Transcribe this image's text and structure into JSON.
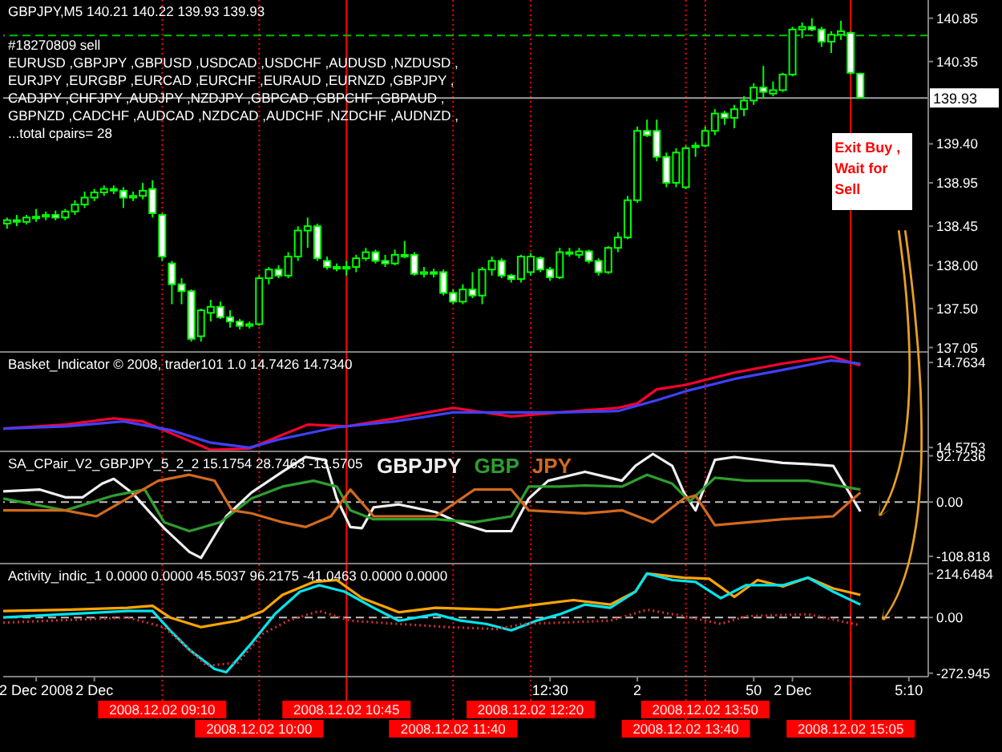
{
  "chart_data": [
    {
      "type": "candlestick",
      "title": "GBPJPY,M5  140.21 140.22 139.93 139.93",
      "color": "#00ff00",
      "annotations": [
        "#18270809 sell",
        "EURUSD ,GBPJPY ,GBPUSD ,USDCAD ,USDCHF ,AUDUSD ,NZDUSD ,",
        "EURJPY ,EURGBP ,EURCAD ,EURCHF ,EURAUD ,EURNZD ,GBPJPY ,",
        "CADJPY ,CHFJPY ,AUDJPY ,NZDJPY ,GBPCAD ,GBPCHF ,GBPAUD ,",
        "GBPNZD ,CADCHF ,AUDCAD ,NZDCAD ,AUDCHF ,NZDCHF ,AUDNZD ,",
        "...total cpairs= 28",
        {
          "text": "Exit Buy , Wait for Sell",
          "x": "2008-12-02T15:05",
          "y": 139.05
        }
      ],
      "x": [
        "2008-12-02T07:50",
        "2008-12-02T07:55",
        "2008-12-02T08:00",
        "2008-12-02T08:05",
        "2008-12-02T08:10",
        "2008-12-02T08:15",
        "2008-12-02T08:20",
        "2008-12-02T08:25",
        "2008-12-02T08:30",
        "2008-12-02T08:35",
        "2008-12-02T08:40",
        "2008-12-02T08:45",
        "2008-12-02T08:50",
        "2008-12-02T08:55",
        "2008-12-02T09:00",
        "2008-12-02T09:05",
        "2008-12-02T09:10",
        "2008-12-02T09:15",
        "2008-12-02T09:20",
        "2008-12-02T09:25",
        "2008-12-02T09:30",
        "2008-12-02T09:35",
        "2008-12-02T09:40",
        "2008-12-02T09:45",
        "2008-12-02T09:50",
        "2008-12-02T09:55",
        "2008-12-02T10:00",
        "2008-12-02T10:05",
        "2008-12-02T10:10",
        "2008-12-02T10:15",
        "2008-12-02T10:20",
        "2008-12-02T10:25",
        "2008-12-02T10:30",
        "2008-12-02T10:35",
        "2008-12-02T10:40",
        "2008-12-02T10:45",
        "2008-12-02T10:50",
        "2008-12-02T10:55",
        "2008-12-02T11:00",
        "2008-12-02T11:05",
        "2008-12-02T11:10",
        "2008-12-02T11:15",
        "2008-12-02T11:20",
        "2008-12-02T11:25",
        "2008-12-02T11:30",
        "2008-12-02T11:35",
        "2008-12-02T11:40",
        "2008-12-02T11:45",
        "2008-12-02T11:50",
        "2008-12-02T11:55",
        "2008-12-02T12:00",
        "2008-12-02T12:05",
        "2008-12-02T12:10",
        "2008-12-02T12:15",
        "2008-12-02T12:20",
        "2008-12-02T12:25",
        "2008-12-02T12:30",
        "2008-12-02T12:35",
        "2008-12-02T12:40",
        "2008-12-02T12:45",
        "2008-12-02T12:50",
        "2008-12-02T12:55",
        "2008-12-02T13:00",
        "2008-12-02T13:05",
        "2008-12-02T13:10",
        "2008-12-02T13:15",
        "2008-12-02T13:20",
        "2008-12-02T13:25",
        "2008-12-02T13:30",
        "2008-12-02T13:35",
        "2008-12-02T13:40",
        "2008-12-02T13:45",
        "2008-12-02T13:50",
        "2008-12-02T13:55",
        "2008-12-02T14:00",
        "2008-12-02T14:05",
        "2008-12-02T14:10",
        "2008-12-02T14:15",
        "2008-12-02T14:20",
        "2008-12-02T14:25",
        "2008-12-02T14:30",
        "2008-12-02T14:35",
        "2008-12-02T14:40",
        "2008-12-02T14:45",
        "2008-12-02T14:50",
        "2008-12-02T14:55",
        "2008-12-02T15:00",
        "2008-12-02T15:05",
        "2008-12-02T15:10"
      ],
      "ohlc": [
        [
          138.48,
          138.55,
          138.42,
          138.52
        ],
        [
          138.52,
          138.58,
          138.45,
          138.5
        ],
        [
          138.5,
          138.58,
          138.47,
          138.55
        ],
        [
          138.55,
          138.65,
          138.5,
          138.56
        ],
        [
          138.56,
          138.62,
          138.52,
          138.58
        ],
        [
          138.58,
          138.63,
          138.52,
          138.55
        ],
        [
          138.55,
          138.65,
          138.52,
          138.62
        ],
        [
          138.62,
          138.75,
          138.58,
          138.7
        ],
        [
          138.7,
          138.85,
          138.66,
          138.78
        ],
        [
          138.78,
          138.88,
          138.74,
          138.84
        ],
        [
          138.84,
          138.92,
          138.8,
          138.88
        ],
        [
          138.88,
          138.92,
          138.82,
          138.86
        ],
        [
          138.86,
          138.9,
          138.66,
          138.78
        ],
        [
          138.78,
          138.85,
          138.74,
          138.8
        ],
        [
          138.8,
          138.95,
          138.76,
          138.86
        ],
        [
          138.88,
          138.98,
          138.55,
          138.6
        ],
        [
          138.58,
          138.6,
          138.05,
          138.1
        ],
        [
          138.02,
          138.05,
          137.55,
          137.78
        ],
        [
          137.78,
          137.85,
          137.55,
          137.7
        ],
        [
          137.7,
          137.72,
          137.12,
          137.15
        ],
        [
          137.18,
          137.5,
          137.12,
          137.48
        ],
        [
          137.45,
          137.6,
          137.35,
          137.52
        ],
        [
          137.52,
          137.58,
          137.38,
          137.4
        ],
        [
          137.4,
          137.48,
          137.28,
          137.35
        ],
        [
          137.35,
          137.38,
          137.26,
          137.3
        ],
        [
          137.3,
          137.35,
          137.27,
          137.32
        ],
        [
          137.32,
          137.88,
          137.3,
          137.85
        ],
        [
          137.85,
          137.98,
          137.78,
          137.95
        ],
        [
          137.95,
          138.0,
          137.85,
          137.88
        ],
        [
          137.88,
          138.15,
          137.85,
          138.1
        ],
        [
          138.1,
          138.45,
          138.05,
          138.4
        ],
        [
          138.4,
          138.55,
          138.2,
          138.45
        ],
        [
          138.45,
          138.48,
          138.05,
          138.08
        ],
        [
          138.05,
          138.1,
          137.95,
          137.98
        ],
        [
          137.98,
          138.02,
          137.93,
          137.96
        ],
        [
          137.96,
          138.05,
          137.88,
          137.98
        ],
        [
          137.98,
          138.12,
          137.92,
          138.08
        ],
        [
          138.08,
          138.2,
          138.05,
          138.15
        ],
        [
          138.15,
          138.18,
          138.02,
          138.05
        ],
        [
          138.05,
          138.12,
          137.98,
          138.02
        ],
        [
          138.02,
          138.18,
          138.0,
          138.12
        ],
        [
          138.12,
          138.28,
          138.08,
          138.1
        ],
        [
          138.12,
          138.15,
          137.88,
          137.9
        ],
        [
          137.9,
          137.98,
          137.86,
          137.92
        ],
        [
          137.92,
          137.96,
          137.86,
          137.9
        ],
        [
          137.92,
          137.95,
          137.65,
          137.68
        ],
        [
          137.68,
          137.72,
          137.55,
          137.58
        ],
        [
          137.58,
          137.78,
          137.55,
          137.72
        ],
        [
          137.72,
          137.92,
          137.62,
          137.65
        ],
        [
          137.65,
          137.98,
          137.55,
          137.95
        ],
        [
          137.95,
          138.1,
          137.88,
          138.05
        ],
        [
          138.05,
          138.08,
          137.85,
          137.88
        ],
        [
          137.88,
          137.9,
          137.8,
          137.84
        ],
        [
          137.84,
          138.12,
          137.8,
          138.1
        ],
        [
          137.92,
          138.14,
          137.88,
          138.1
        ],
        [
          138.08,
          138.1,
          137.92,
          137.95
        ],
        [
          137.95,
          137.98,
          137.82,
          137.86
        ],
        [
          137.86,
          138.2,
          137.84,
          138.15
        ],
        [
          138.15,
          138.2,
          138.1,
          138.14
        ],
        [
          138.12,
          138.2,
          138.08,
          138.16
        ],
        [
          138.16,
          138.18,
          138.02,
          138.05
        ],
        [
          138.05,
          138.08,
          137.88,
          137.92
        ],
        [
          137.92,
          138.22,
          137.9,
          138.2
        ],
        [
          138.2,
          138.38,
          138.15,
          138.32
        ],
        [
          138.32,
          138.8,
          138.3,
          138.75
        ],
        [
          138.75,
          139.6,
          138.72,
          139.55
        ],
        [
          139.55,
          139.68,
          139.48,
          139.5
        ],
        [
          139.55,
          139.68,
          139.2,
          139.25
        ],
        [
          139.25,
          139.3,
          138.9,
          138.95
        ],
        [
          138.95,
          139.35,
          138.9,
          139.3
        ],
        [
          138.9,
          139.38,
          138.88,
          139.35
        ],
        [
          139.38,
          139.42,
          139.25,
          139.38
        ],
        [
          139.38,
          139.6,
          139.36,
          139.55
        ],
        [
          139.55,
          139.8,
          139.5,
          139.75
        ],
        [
          139.75,
          139.78,
          139.62,
          139.7
        ],
        [
          139.7,
          139.85,
          139.58,
          139.8
        ],
        [
          139.8,
          139.95,
          139.72,
          139.9
        ],
        [
          139.9,
          140.1,
          139.85,
          140.05
        ],
        [
          140.05,
          140.3,
          139.92,
          140.0
        ],
        [
          139.98,
          140.12,
          139.95,
          140.02
        ],
        [
          140.02,
          140.22,
          140.0,
          140.2
        ],
        [
          140.2,
          140.75,
          140.18,
          140.72
        ],
        [
          140.72,
          140.8,
          140.62,
          140.75
        ],
        [
          140.75,
          140.85,
          140.7,
          140.72
        ],
        [
          140.72,
          140.75,
          140.52,
          140.58
        ],
        [
          140.58,
          140.7,
          140.45,
          140.66
        ],
        [
          140.66,
          140.82,
          140.6,
          140.7
        ],
        [
          140.68,
          140.7,
          140.2,
          140.22
        ],
        [
          140.21,
          140.22,
          139.93,
          139.93
        ]
      ],
      "xlim": [
        "2008-12-02T07:48",
        "2008-12-02T15:45"
      ],
      "ylim": [
        136.99,
        141.06
      ],
      "yticks": [
        {
          "value": 137.05,
          "label": "137.05"
        },
        {
          "value": 137.5,
          "label": "137.50"
        },
        {
          "value": 138,
          "label": "138.00"
        },
        {
          "value": 138.45,
          "label": "138.45"
        },
        {
          "value": 138.95,
          "label": "138.95"
        },
        {
          "value": 139.4,
          "label": "139.40"
        },
        {
          "value": 140.35,
          "label": "140.35"
        },
        {
          "value": 140.85,
          "label": "140.85"
        }
      ],
      "tick_labels": "y",
      "ref_lines": [
        {
          "axis": "y",
          "value": 140.65,
          "color": "#00c000",
          "line_style": "dashed"
        },
        {
          "axis": "y",
          "value": 139.93,
          "label": "139.93",
          "color": "#a0a0a0",
          "line_style": "solid"
        },
        {
          "axis": "x",
          "value": "2008-12-02T09:10",
          "color": "#ff0000",
          "line_style": "dotted"
        },
        {
          "axis": "x",
          "value": "2008-12-02T10:00",
          "color": "#ff0000",
          "line_style": "dotted"
        },
        {
          "axis": "x",
          "value": "2008-12-02T10:45",
          "color": "#ff0000",
          "line_style": "solid"
        },
        {
          "axis": "x",
          "value": "2008-12-02T11:40",
          "color": "#ff0000",
          "line_style": "dotted"
        },
        {
          "axis": "x",
          "value": "2008-12-02T12:20",
          "color": "#ff0000",
          "line_style": "dotted"
        },
        {
          "axis": "x",
          "value": "2008-12-02T13:40",
          "color": "#ff0000",
          "line_style": "dotted"
        },
        {
          "axis": "x",
          "value": "2008-12-02T13:50",
          "color": "#ff0000",
          "line_style": "dotted"
        },
        {
          "axis": "x",
          "value": "2008-12-02T15:05",
          "color": "#ff0000",
          "line_style": "solid"
        }
      ]
    },
    {
      "type": "line",
      "title": "Basket_Indicator © 2008, trader101 1.0 14.7426 14.7340",
      "series": [
        {
          "color": "#ff0030",
          "x": [
            "2008-12-02T07:48",
            "2008-12-02T08:20",
            "2008-12-02T08:45",
            "2008-12-02T09:00",
            "2008-12-02T09:15",
            "2008-12-02T09:35",
            "2008-12-02T09:55",
            "2008-12-02T10:10",
            "2008-12-02T10:25",
            "2008-12-02T10:45",
            "2008-12-02T11:10",
            "2008-12-02T11:40",
            "2008-12-02T12:10",
            "2008-12-02T12:35",
            "2008-12-02T13:05",
            "2008-12-02T13:15",
            "2008-12-02T13:25",
            "2008-12-02T13:40",
            "2008-12-02T14:05",
            "2008-12-02T14:30",
            "2008-12-02T14:55",
            "2008-12-02T15:10"
          ],
          "values": [
            14.617,
            14.626,
            14.64,
            14.633,
            14.606,
            14.57,
            14.573,
            14.6,
            14.626,
            14.622,
            14.64,
            14.663,
            14.644,
            14.653,
            14.663,
            14.673,
            14.704,
            14.714,
            14.741,
            14.761,
            14.777,
            14.757
          ]
        },
        {
          "color": "#4040ff",
          "x": [
            "2008-12-02T07:48",
            "2008-12-02T08:20",
            "2008-12-02T08:50",
            "2008-12-02T09:15",
            "2008-12-02T09:35",
            "2008-12-02T09:55",
            "2008-12-02T10:10",
            "2008-12-02T10:40",
            "2008-12-02T11:10",
            "2008-12-02T11:40",
            "2008-12-02T12:10",
            "2008-12-02T12:35",
            "2008-12-02T13:05",
            "2008-12-02T13:25",
            "2008-12-02T13:40",
            "2008-12-02T14:05",
            "2008-12-02T14:30",
            "2008-12-02T14:55",
            "2008-12-02T15:10"
          ],
          "values": [
            14.617,
            14.622,
            14.633,
            14.613,
            14.586,
            14.575,
            14.593,
            14.62,
            14.633,
            14.653,
            14.653,
            14.653,
            14.656,
            14.68,
            14.7,
            14.727,
            14.747,
            14.768,
            14.761
          ]
        }
      ],
      "xlim": [
        "2008-12-02T07:48",
        "2008-12-02T15:45"
      ],
      "ylim": [
        14.565,
        14.785
      ],
      "yticks": [
        14.5753,
        14.7634
      ],
      "tick_labels": "y",
      "ref_lines": [
        {
          "axis": "x",
          "value": "2008-12-02T09:10",
          "color": "#ff0000",
          "line_style": "dotted"
        },
        {
          "axis": "x",
          "value": "2008-12-02T10:00",
          "color": "#ff0000",
          "line_style": "dotted"
        },
        {
          "axis": "x",
          "value": "2008-12-02T10:45",
          "color": "#ff0000",
          "line_style": "solid"
        },
        {
          "axis": "x",
          "value": "2008-12-02T11:40",
          "color": "#ff0000",
          "line_style": "dotted"
        },
        {
          "axis": "x",
          "value": "2008-12-02T12:20",
          "color": "#ff0000",
          "line_style": "dotted"
        },
        {
          "axis": "x",
          "value": "2008-12-02T13:40",
          "color": "#ff0000",
          "line_style": "dotted"
        },
        {
          "axis": "x",
          "value": "2008-12-02T13:50",
          "color": "#ff0000",
          "line_style": "dotted"
        },
        {
          "axis": "x",
          "value": "2008-12-02T15:05",
          "color": "#ff0000",
          "line_style": "solid"
        }
      ]
    },
    {
      "type": "line",
      "title": "SA_CPair_V2_GBPJPY_5_2_2 15.1754 28.7463 -13.5705",
      "series": [
        {
          "name": "GBPJPY",
          "color": "#f0f0f0",
          "x": [
            "2008-12-02T07:48",
            "2008-12-02T08:07",
            "2008-12-02T08:20",
            "2008-12-02T08:29",
            "2008-12-02T08:39",
            "2008-12-02T08:45",
            "2008-12-02T08:55",
            "2008-12-02T09:11",
            "2008-12-02T09:24",
            "2008-12-02T09:30",
            "2008-12-02T09:43",
            "2008-12-02T09:56",
            "2008-12-02T10:12",
            "2008-12-02T10:24",
            "2008-12-02T10:34",
            "2008-12-02T10:40",
            "2008-12-02T10:47",
            "2008-12-02T10:53",
            "2008-12-02T10:59",
            "2008-12-02T11:12",
            "2008-12-02T11:31",
            "2008-12-02T11:44",
            "2008-12-02T11:57",
            "2008-12-02T12:10",
            "2008-12-02T12:19",
            "2008-12-02T12:29",
            "2008-12-02T12:48",
            "2008-12-02T13:07",
            "2008-12-02T13:14",
            "2008-12-02T13:23",
            "2008-12-02T13:33",
            "2008-12-02T13:39",
            "2008-12-02T13:45",
            "2008-12-02T13:55",
            "2008-12-02T14:05",
            "2008-12-02T14:30",
            "2008-12-02T14:43",
            "2008-12-02T14:56",
            "2008-12-02T15:10"
          ],
          "values": [
            21.4,
            25.0,
            9.5,
            9.5,
            36.9,
            46.4,
            16.7,
            -52.4,
            -100.0,
            -111.9,
            -28.6,
            19.0,
            60.7,
            90.4,
            84.5,
            7.1,
            -50.0,
            -52.4,
            -10.7,
            -4.8,
            -20.2,
            -42.8,
            -58.3,
            -58.3,
            7.1,
            42.8,
            60.7,
            42.8,
            72.6,
            96.4,
            72.6,
            19.0,
            -16.7,
            84.5,
            90.4,
            78.5,
            76.2,
            72.6,
            -19.0
          ]
        },
        {
          "name": "GBP",
          "color": "#2e9e2e",
          "x": [
            "2008-12-02T07:48",
            "2008-12-02T08:20",
            "2008-12-02T08:45",
            "2008-12-02T09:01",
            "2008-12-02T09:11",
            "2008-12-02T09:24",
            "2008-12-02T09:40",
            "2008-12-02T09:56",
            "2008-12-02T10:12",
            "2008-12-02T10:28",
            "2008-12-02T10:40",
            "2008-12-02T10:47",
            "2008-12-02T10:59",
            "2008-12-02T11:31",
            "2008-12-02T11:51",
            "2008-12-02T12:10",
            "2008-12-02T12:19",
            "2008-12-02T12:35",
            "2008-12-02T12:48",
            "2008-12-02T13:07",
            "2008-12-02T13:20",
            "2008-12-02T13:33",
            "2008-12-02T13:42",
            "2008-12-02T13:55",
            "2008-12-02T14:11",
            "2008-12-02T14:43",
            "2008-12-02T15:10"
          ],
          "values": [
            7.1,
            -16.7,
            13.1,
            25.0,
            -40.5,
            -58.3,
            -40.5,
            7.1,
            31.0,
            42.8,
            31.0,
            -16.7,
            -34.5,
            -34.5,
            -40.5,
            -28.6,
            31.0,
            31.0,
            33.3,
            31.0,
            54.7,
            36.9,
            1.2,
            48.8,
            42.8,
            42.8,
            25.0
          ]
        },
        {
          "name": "JPY",
          "color": "#d2691e",
          "x": [
            "2008-12-02T07:48",
            "2008-12-02T08:20",
            "2008-12-02T08:36",
            "2008-12-02T08:52",
            "2008-12-02T09:08",
            "2008-12-02T09:24",
            "2008-12-02T09:37",
            "2008-12-02T09:46",
            "2008-12-02T09:56",
            "2008-12-02T10:12",
            "2008-12-02T10:24",
            "2008-12-02T10:37",
            "2008-12-02T10:47",
            "2008-12-02T10:59",
            "2008-12-02T11:31",
            "2008-12-02T11:51",
            "2008-12-02T12:10",
            "2008-12-02T12:19",
            "2008-12-02T12:48",
            "2008-12-02T13:07",
            "2008-12-02T13:23",
            "2008-12-02T13:39",
            "2008-12-02T13:45",
            "2008-12-02T13:55",
            "2008-12-02T14:30",
            "2008-12-02T14:56",
            "2008-12-02T15:10"
          ],
          "values": [
            -16.7,
            -16.7,
            -28.6,
            7.1,
            42.8,
            54.7,
            42.8,
            -16.7,
            -22.6,
            -40.5,
            -50.0,
            -28.6,
            25.0,
            -28.6,
            -28.6,
            25.0,
            25.0,
            -16.7,
            -22.6,
            -16.7,
            -40.5,
            7.1,
            13.1,
            -46.4,
            -34.5,
            -28.6,
            19.0
          ]
        }
      ],
      "xlim": [
        "2008-12-02T07:48",
        "2008-12-02T15:45"
      ],
      "ylim": [
        -125,
        100
      ],
      "yticks": [
        -108.818,
        {
          "value": 0,
          "label": "0.00"
        },
        92.7236
      ],
      "tick_labels": "y",
      "ref_lines": [
        {
          "axis": "y",
          "value": 0,
          "color": "#c0c0c0",
          "line_style": "dashed"
        },
        {
          "axis": "x",
          "value": "2008-12-02T09:10",
          "color": "#ff0000",
          "line_style": "dotted"
        },
        {
          "axis": "x",
          "value": "2008-12-02T10:00",
          "color": "#ff0000",
          "line_style": "dotted"
        },
        {
          "axis": "x",
          "value": "2008-12-02T10:45",
          "color": "#ff0000",
          "line_style": "solid"
        },
        {
          "axis": "x",
          "value": "2008-12-02T11:40",
          "color": "#ff0000",
          "line_style": "dotted"
        },
        {
          "axis": "x",
          "value": "2008-12-02T12:20",
          "color": "#ff0000",
          "line_style": "dotted"
        },
        {
          "axis": "x",
          "value": "2008-12-02T13:40",
          "color": "#ff0000",
          "line_style": "dotted"
        },
        {
          "axis": "x",
          "value": "2008-12-02T13:50",
          "color": "#ff0000",
          "line_style": "dotted"
        },
        {
          "axis": "x",
          "value": "2008-12-02T15:05",
          "color": "#ff0000",
          "line_style": "solid"
        }
      ]
    },
    {
      "type": "line",
      "title": "Activity_indic_1 0.0000 0.0000 45.5037 96.2175 -41.0463 0.0000 0.0000",
      "series": [
        {
          "color": "#ffa500",
          "x": [
            "2008-12-02T07:48",
            "2008-12-02T08:20",
            "2008-12-02T08:52",
            "2008-12-02T09:05",
            "2008-12-02T09:14",
            "2008-12-02T09:30",
            "2008-12-02T09:49",
            "2008-12-02T10:02",
            "2008-12-02T10:12",
            "2008-12-02T10:28",
            "2008-12-02T10:40",
            "2008-12-02T10:53",
            "2008-12-02T11:06",
            "2008-12-02T11:12",
            "2008-12-02T11:31",
            "2008-12-02T12:03",
            "2008-12-02T12:23",
            "2008-12-02T12:42",
            "2008-12-02T13:01",
            "2008-12-02T13:14",
            "2008-12-02T13:20",
            "2008-12-02T13:39",
            "2008-12-02T13:52",
            "2008-12-02T14:05",
            "2008-12-02T14:17",
            "2008-12-02T14:30",
            "2008-12-02T14:43",
            "2008-12-02T14:56",
            "2008-12-02T15:10"
          ],
          "values": [
            31.6,
            37.9,
            47.4,
            56.9,
            0,
            -47.4,
            -15.8,
            31.6,
            110.6,
            173.8,
            183.3,
            94.8,
            47.4,
            25.3,
            47.4,
            37.9,
            63.2,
            85.3,
            63.2,
            126.4,
            215.0,
            195.0,
            189.6,
            101.1,
            183.3,
            151.7,
            195.0,
            142.2,
            110.6
          ]
        },
        {
          "color": "#00e5ee",
          "x": [
            "2008-12-02T07:48",
            "2008-12-02T08:20",
            "2008-12-02T08:52",
            "2008-12-02T09:05",
            "2008-12-02T09:14",
            "2008-12-02T09:24",
            "2008-12-02T09:37",
            "2008-12-02T09:43",
            "2008-12-02T09:56",
            "2008-12-02T10:08",
            "2008-12-02T10:21",
            "2008-12-02T10:31",
            "2008-12-02T10:44",
            "2008-12-02T10:59",
            "2008-12-02T11:12",
            "2008-12-02T11:31",
            "2008-12-02T11:44",
            "2008-12-02T11:57",
            "2008-12-02T12:10",
            "2008-12-02T12:23",
            "2008-12-02T12:35",
            "2008-12-02T12:48",
            "2008-12-02T13:01",
            "2008-12-02T13:14",
            "2008-12-02T13:20",
            "2008-12-02T13:33",
            "2008-12-02T13:45",
            "2008-12-02T13:58",
            "2008-12-02T14:11",
            "2008-12-02T14:30",
            "2008-12-02T14:43",
            "2008-12-02T14:56",
            "2008-12-02T15:10"
          ],
          "values": [
            0,
            15.8,
            31.6,
            31.6,
            -63.2,
            -158.0,
            -252.8,
            -268.6,
            -126.4,
            15.8,
            126.4,
            158.0,
            126.4,
            47.4,
            -15.8,
            15.8,
            -15.8,
            -31.6,
            -63.2,
            -15.8,
            15.8,
            63.2,
            47.4,
            126.4,
            215.0,
            183.3,
            173.8,
            94.8,
            158.0,
            158.0,
            195.0,
            126.4,
            63.2
          ]
        },
        {
          "color": "#d03030",
          "line_style": "dotted",
          "x": [
            "2008-12-02T07:48",
            "2008-12-02T08:52",
            "2008-12-02T09:11",
            "2008-12-02T09:33",
            "2008-12-02T09:49",
            "2008-12-02T10:02",
            "2008-12-02T10:15",
            "2008-12-02T10:31",
            "2008-12-02T10:47",
            "2008-12-02T11:12",
            "2008-12-02T11:38",
            "2008-12-02T12:03",
            "2008-12-02T12:16",
            "2008-12-02T12:35",
            "2008-12-02T13:01",
            "2008-12-02T13:20",
            "2008-12-02T13:39",
            "2008-12-02T13:58",
            "2008-12-02T14:11",
            "2008-12-02T14:43",
            "2008-12-02T15:10"
          ],
          "values": [
            -25.3,
            0,
            -47.4,
            -237.0,
            -221.2,
            -79.0,
            -15.8,
            31.6,
            -15.8,
            -31.6,
            -47.4,
            -56.9,
            -31.6,
            -25.3,
            -15.8,
            37.9,
            6.3,
            -31.6,
            6.3,
            15.8,
            -37.9
          ]
        }
      ],
      "xlim": [
        "2008-12-02T07:48",
        "2008-12-02T15:45"
      ],
      "ylim": [
        -290,
        260
      ],
      "yticks": [
        -272.945,
        {
          "value": 0,
          "label": "0.00"
        },
        214.6484
      ],
      "xticks": [
        {
          "value": "2008-12-02T08:05",
          "label": "2 Dec 2008"
        },
        {
          "value": "2008-12-02T08:35",
          "label": "2 Dec"
        },
        {
          "value": "2008-12-02T12:30",
          "label": "12:30"
        },
        {
          "value": "2008-12-02T13:15",
          "label": "2"
        },
        {
          "value": "2008-12-02T14:15",
          "label": "50"
        },
        {
          "value": "2008-12-02T14:35",
          "label": "2 Dec"
        },
        {
          "value": "2008-12-02T15:35",
          "label": "5:10"
        }
      ],
      "ref_lines": [
        {
          "axis": "y",
          "value": 0,
          "color": "#c0c0c0",
          "line_style": "dashed"
        },
        {
          "axis": "x",
          "value": "2008-12-02T09:10",
          "label": "2008.12.02 09:10",
          "color": "#ff0000",
          "line_style": "dotted"
        },
        {
          "axis": "x",
          "value": "2008-12-02T10:00",
          "label": "2008.12.02 10:00",
          "color": "#ff0000",
          "line_style": "dotted"
        },
        {
          "axis": "x",
          "value": "2008-12-02T10:45",
          "label": "2008.12.02 10:45",
          "color": "#ff0000",
          "line_style": "solid"
        },
        {
          "axis": "x",
          "value": "2008-12-02T11:40",
          "label": "2008.12.02 11:40",
          "color": "#ff0000",
          "line_style": "dotted"
        },
        {
          "axis": "x",
          "value": "2008-12-02T12:20",
          "label": "2008.12.02 12:20",
          "color": "#ff0000",
          "line_style": "dotted"
        },
        {
          "axis": "x",
          "value": "2008-12-02T13:40",
          "label": "2008.12.02 13:40",
          "color": "#ff0000",
          "line_style": "dotted"
        },
        {
          "axis": "x",
          "value": "2008-12-02T13:50",
          "label": "2008.12.02 13:50",
          "color": "#ff0000",
          "line_style": "dotted"
        },
        {
          "axis": "x",
          "value": "2008-12-02T15:05",
          "label": "2008.12.02 15:05",
          "color": "#ff0000",
          "line_style": "solid"
        }
      ]
    }
  ]
}
